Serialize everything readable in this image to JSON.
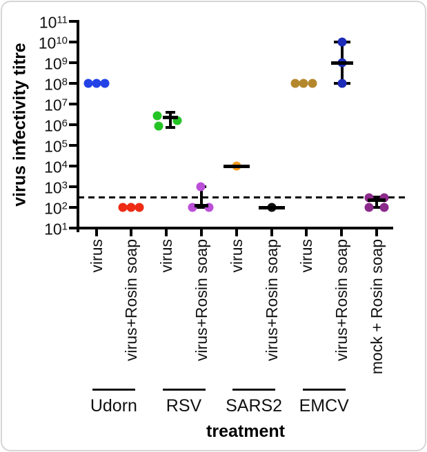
{
  "chart_data": {
    "type": "scatter",
    "yscale": "log",
    "ylim": [
      10,
      100000000000
    ],
    "ylabel": "virus infectivity titre",
    "xlabel": "treatment",
    "y_tick_exponents": [
      11,
      10,
      9,
      8,
      7,
      6,
      5,
      4,
      3,
      2,
      1
    ],
    "detection_limit": 300,
    "legend": "none",
    "grid": "off",
    "groups": [
      {
        "name": "Udorn",
        "from": 0,
        "to": 1
      },
      {
        "name": "RSV",
        "from": 2,
        "to": 3
      },
      {
        "name": "SARS2",
        "from": 4,
        "to": 5
      },
      {
        "name": "EMCV",
        "from": 6,
        "to": 7
      }
    ],
    "categories": [
      {
        "label": "virus",
        "group": "Udorn",
        "color": "#2342e6",
        "points": [
          {
            "dx": -12,
            "v": 100000000.0
          },
          {
            "dx": 0,
            "v": 100000000.0
          },
          {
            "dx": 12,
            "v": 100000000.0
          }
        ]
      },
      {
        "label": "virus+Rosin soap",
        "group": "Udorn",
        "color": "#ee2b15",
        "points": [
          {
            "dx": -12,
            "v": 100
          },
          {
            "dx": 0,
            "v": 100
          },
          {
            "dx": 12,
            "v": 100
          }
        ]
      },
      {
        "label": "virus",
        "group": "RSV",
        "color": "#25c425",
        "points": [
          {
            "dx": -13,
            "v": 2700000
          },
          {
            "dx": -11,
            "v": 850000
          },
          {
            "dx": 16,
            "v": 1600000
          }
        ],
        "errorbar": {
          "dx": 6,
          "hi": 4000000,
          "med": 2200000,
          "lo": 750000,
          "cap_w": 14,
          "med_w": 22
        }
      },
      {
        "label": "virus+Rosin soap",
        "group": "RSV",
        "color": "#bc4fd8",
        "points": [
          {
            "dx": -1,
            "v": 1000
          },
          {
            "dx": -13,
            "v": 100
          },
          {
            "dx": 11,
            "v": 100
          }
        ],
        "errorbar": {
          "dx": 0,
          "hi": 1000,
          "med": 125,
          "lo": 100,
          "cap_w": 14,
          "med_w": 20
        }
      },
      {
        "label": "virus",
        "group": "SARS2",
        "color": "#f79b1b",
        "points": [
          {
            "dx": 0,
            "v": 10000
          }
        ],
        "errorbar": {
          "dx": 0,
          "hi": 10000,
          "med": 10000,
          "lo": 10000,
          "cap_w": 0,
          "med_w": 38
        }
      },
      {
        "label": "virus+Rosin soap",
        "group": "SARS2",
        "color": "#111111",
        "points": [
          {
            "dx": 0,
            "v": 100
          }
        ],
        "errorbar": {
          "dx": 0,
          "hi": 100,
          "med": 100,
          "lo": 100,
          "cap_w": 0,
          "med_w": 38
        }
      },
      {
        "label": "virus",
        "group": "EMCV",
        "color": "#b5872c",
        "points": [
          {
            "dx": -16,
            "v": 100000000.0
          },
          {
            "dx": -4,
            "v": 100000000.0
          },
          {
            "dx": 9,
            "v": 100000000.0
          }
        ]
      },
      {
        "label": "virus+Rosin soap",
        "group": "EMCV",
        "color": "#1c2bb8",
        "points": [
          {
            "dx": 1,
            "v": 10000000000.0
          },
          {
            "dx": 1,
            "v": 1000000000.0
          },
          {
            "dx": 1,
            "v": 100000000.0
          }
        ],
        "errorbar": {
          "dx": 1,
          "hi": 10000000000.0,
          "med": 1000000000.0,
          "lo": 100000000.0,
          "cap_w": 24,
          "med_w": 32
        }
      },
      {
        "label": "mock + Rosin soap",
        "group": null,
        "color": "#8c2a8c",
        "points": [
          {
            "dx": -11,
            "v": 300
          },
          {
            "dx": 11,
            "v": 300
          },
          {
            "dx": -11,
            "v": 100
          },
          {
            "dx": 11,
            "v": 100
          }
        ],
        "errorbar": {
          "dx": 0,
          "hi": 300,
          "med": 220,
          "lo": 100,
          "cap_w": 30,
          "med_w": 26
        }
      }
    ]
  }
}
